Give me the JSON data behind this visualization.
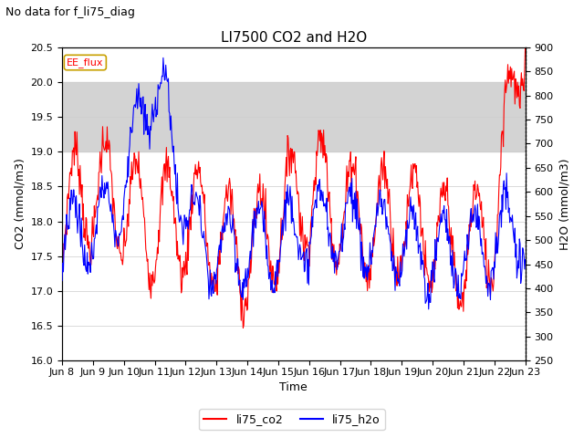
{
  "title": "LI7500 CO2 and H2O",
  "suptitle": "No data for f_li75_diag",
  "xlabel": "Time",
  "ylabel_left": "CO2 (mmol/m3)",
  "ylabel_right": "H2O (mmol/m3)",
  "ylim_left": [
    16.0,
    20.5
  ],
  "ylim_right": [
    250,
    900
  ],
  "yticks_left": [
    16.0,
    16.5,
    17.0,
    17.5,
    18.0,
    18.5,
    19.0,
    19.5,
    20.0,
    20.5
  ],
  "yticks_right": [
    250,
    300,
    350,
    400,
    450,
    500,
    550,
    600,
    650,
    700,
    750,
    800,
    850,
    900
  ],
  "xtick_labels": [
    "Jun 8",
    "Jun 9",
    "Jun 10",
    "Jun 11",
    "Jun 12",
    "Jun 13",
    "Jun 14",
    "Jun 15",
    "Jun 16",
    "Jun 17",
    "Jun 18",
    "Jun 19",
    "Jun 20",
    "Jun 21",
    "Jun 22",
    "Jun 23"
  ],
  "legend_label_co2": "li75_co2",
  "legend_label_h2o": "li75_h2o",
  "co2_color": "#ff0000",
  "h2o_color": "#0000ff",
  "band_label": "EE_flux",
  "band_color": "#d3d3d3",
  "band_ylim": [
    19.0,
    20.0
  ],
  "background_color": "#ffffff",
  "grid_color": "#cccccc",
  "title_fontsize": 11,
  "label_fontsize": 9,
  "tick_fontsize": 8,
  "suptitle_fontsize": 9
}
